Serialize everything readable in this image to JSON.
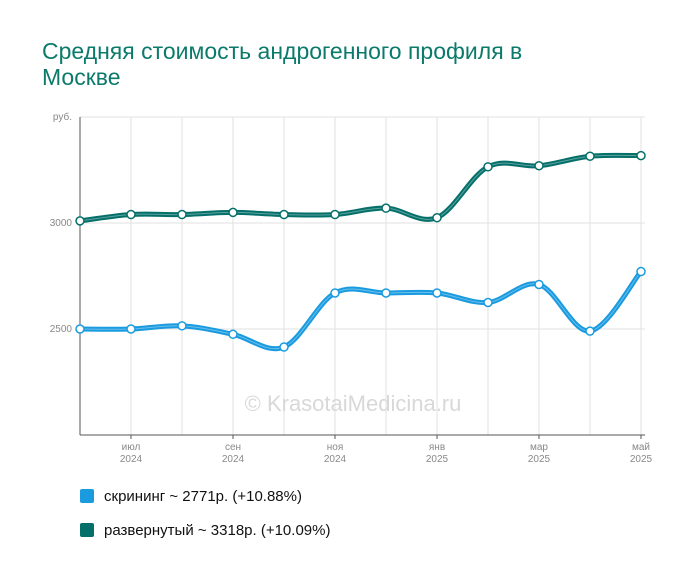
{
  "title": "Средняя стоимость андрогенного профиля в Москве",
  "watermark": "© KrasotaiMedicina.ru",
  "chart_data": {
    "type": "line",
    "title": "Средняя стоимость андрогенного профиля в Москве",
    "ylabel": "руб.",
    "xlabel": "",
    "ylim": [
      2000,
      3500
    ],
    "yticks": [
      2500,
      3000
    ],
    "grid": true,
    "legend_position": "bottom-left",
    "x": [
      "2024-06",
      "2024-07",
      "2024-08",
      "2024-09",
      "2024-10",
      "2024-11",
      "2024-12",
      "2025-01",
      "2025-02",
      "2025-03",
      "2025-04",
      "2025-05"
    ],
    "x_tick_labels": [
      {
        "index": 1,
        "month": "июл",
        "year": "2024"
      },
      {
        "index": 3,
        "month": "сен",
        "year": "2024"
      },
      {
        "index": 5,
        "month": "ноя",
        "year": "2024"
      },
      {
        "index": 7,
        "month": "янв",
        "year": "2025"
      },
      {
        "index": 9,
        "month": "мар",
        "year": "2025"
      },
      {
        "index": 11,
        "month": "май",
        "year": "2025"
      }
    ],
    "series": [
      {
        "name": "скрининг",
        "color": "#1a9be0",
        "values": [
          2500,
          2500,
          2515,
          2475,
          2415,
          2670,
          2670,
          2670,
          2625,
          2710,
          2490,
          2771
        ],
        "legend_label": "скрининг ~ 2771р. (+10.88%)"
      },
      {
        "name": "развернутый",
        "color": "#05706a",
        "values": [
          3010,
          3040,
          3040,
          3050,
          3040,
          3040,
          3070,
          3025,
          3265,
          3270,
          3315,
          3318
        ],
        "legend_label": "развернутый ~ 3318р. (+10.09%)"
      }
    ]
  }
}
